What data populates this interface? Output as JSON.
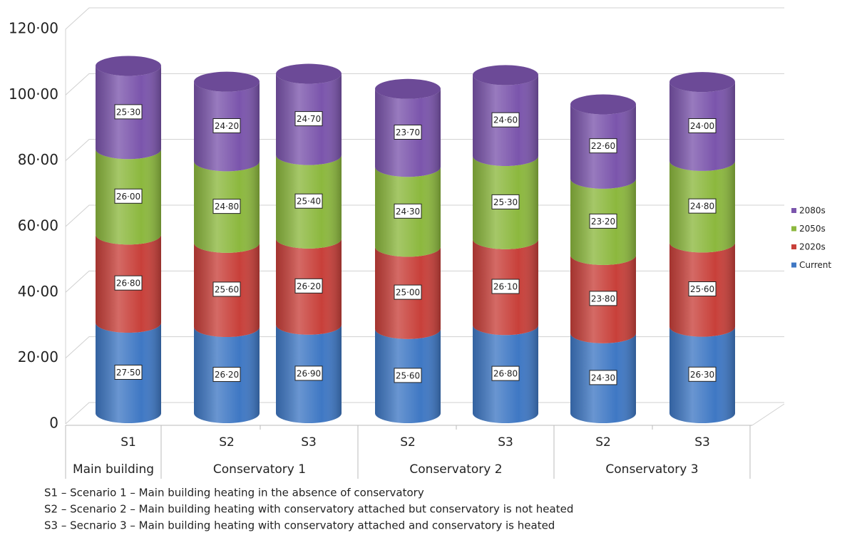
{
  "chart_data": {
    "type": "bar",
    "stacked": true,
    "groups": [
      {
        "name": "Main building",
        "categories": [
          "S1"
        ]
      },
      {
        "name": "Conservatory 1",
        "categories": [
          "S2",
          "S3"
        ]
      },
      {
        "name": "Conservatory 2",
        "categories": [
          "S2",
          "S3"
        ]
      },
      {
        "name": "Conservatory 3",
        "categories": [
          "S2",
          "S3"
        ]
      }
    ],
    "series": [
      {
        "name": "Current",
        "color": "#3f78c4",
        "values": [
          27.5,
          26.2,
          26.9,
          25.6,
          26.8,
          24.3,
          26.3
        ],
        "value_labels": [
          "27·50",
          "26·20",
          "26·90",
          "25·60",
          "26·80",
          "24·30",
          "26·30"
        ]
      },
      {
        "name": "2020s",
        "color": "#c8403a",
        "values": [
          26.8,
          25.6,
          26.2,
          25.0,
          26.1,
          23.8,
          25.6
        ],
        "value_labels": [
          "26·80",
          "25·60",
          "26·20",
          "25·00",
          "26·10",
          "23·80",
          "25·60"
        ]
      },
      {
        "name": "2050s",
        "color": "#8cb83e",
        "values": [
          26.0,
          24.8,
          25.4,
          24.3,
          25.3,
          23.2,
          24.8
        ],
        "value_labels": [
          "26·00",
          "24·80",
          "25·40",
          "24·30",
          "25·30",
          "23·20",
          "24·80"
        ]
      },
      {
        "name": "2080s",
        "color": "#7b55ac",
        "values": [
          25.3,
          24.2,
          24.7,
          23.7,
          24.6,
          22.6,
          24.0
        ],
        "value_labels": [
          "25·30",
          "24·20",
          "24·70",
          "23·70",
          "24·60",
          "22·60",
          "24·00"
        ]
      }
    ],
    "ylim": [
      0,
      120
    ],
    "yticks": [
      0,
      {
        "value": 20,
        "label": "20·00"
      },
      {
        "value": 40,
        "label": "40·00"
      },
      {
        "value": 60,
        "label": "60·00"
      },
      {
        "value": 80,
        "label": "80·00"
      },
      {
        "value": 100,
        "label": "100·00"
      },
      {
        "value": 120,
        "label": "120·00"
      }
    ],
    "grid": true,
    "legend": "right",
    "notes": [
      "S1 – Scenario 1 – Main building heating in the absence of conservatory",
      "S2 – Scenario 2 – Main building heating with conservatory attached but conservatory is not heated",
      "S3 – Secnario 3 – Main building heating with conservatory attached and conservatory is heated"
    ]
  }
}
